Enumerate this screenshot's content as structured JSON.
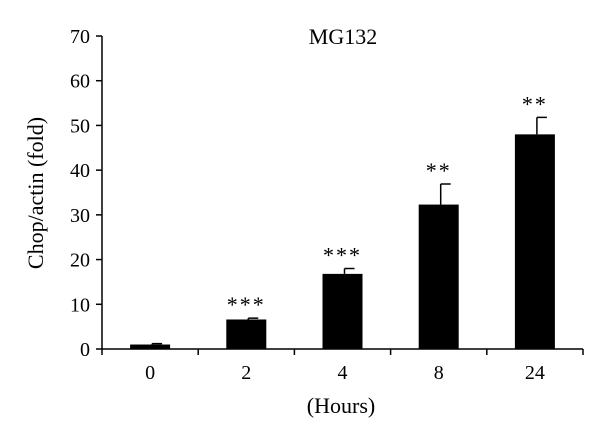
{
  "chart_data": {
    "type": "bar",
    "title": "MG132",
    "xlabel": "(Hours)",
    "ylabel": "Chop/actin (fold)",
    "categories": [
      "0",
      "2",
      "4",
      "8",
      "24"
    ],
    "values": [
      1.0,
      6.6,
      16.8,
      32.3,
      48.0
    ],
    "errors": [
      0.2,
      0.3,
      1.2,
      4.6,
      3.8
    ],
    "significance": [
      "",
      "***",
      "***",
      "**",
      "**"
    ],
    "ylim": [
      0,
      70
    ],
    "yticks": [
      "0",
      "10",
      "20",
      "30",
      "40",
      "50",
      "60",
      "70"
    ],
    "bar_color": "#000000",
    "grid": false
  }
}
